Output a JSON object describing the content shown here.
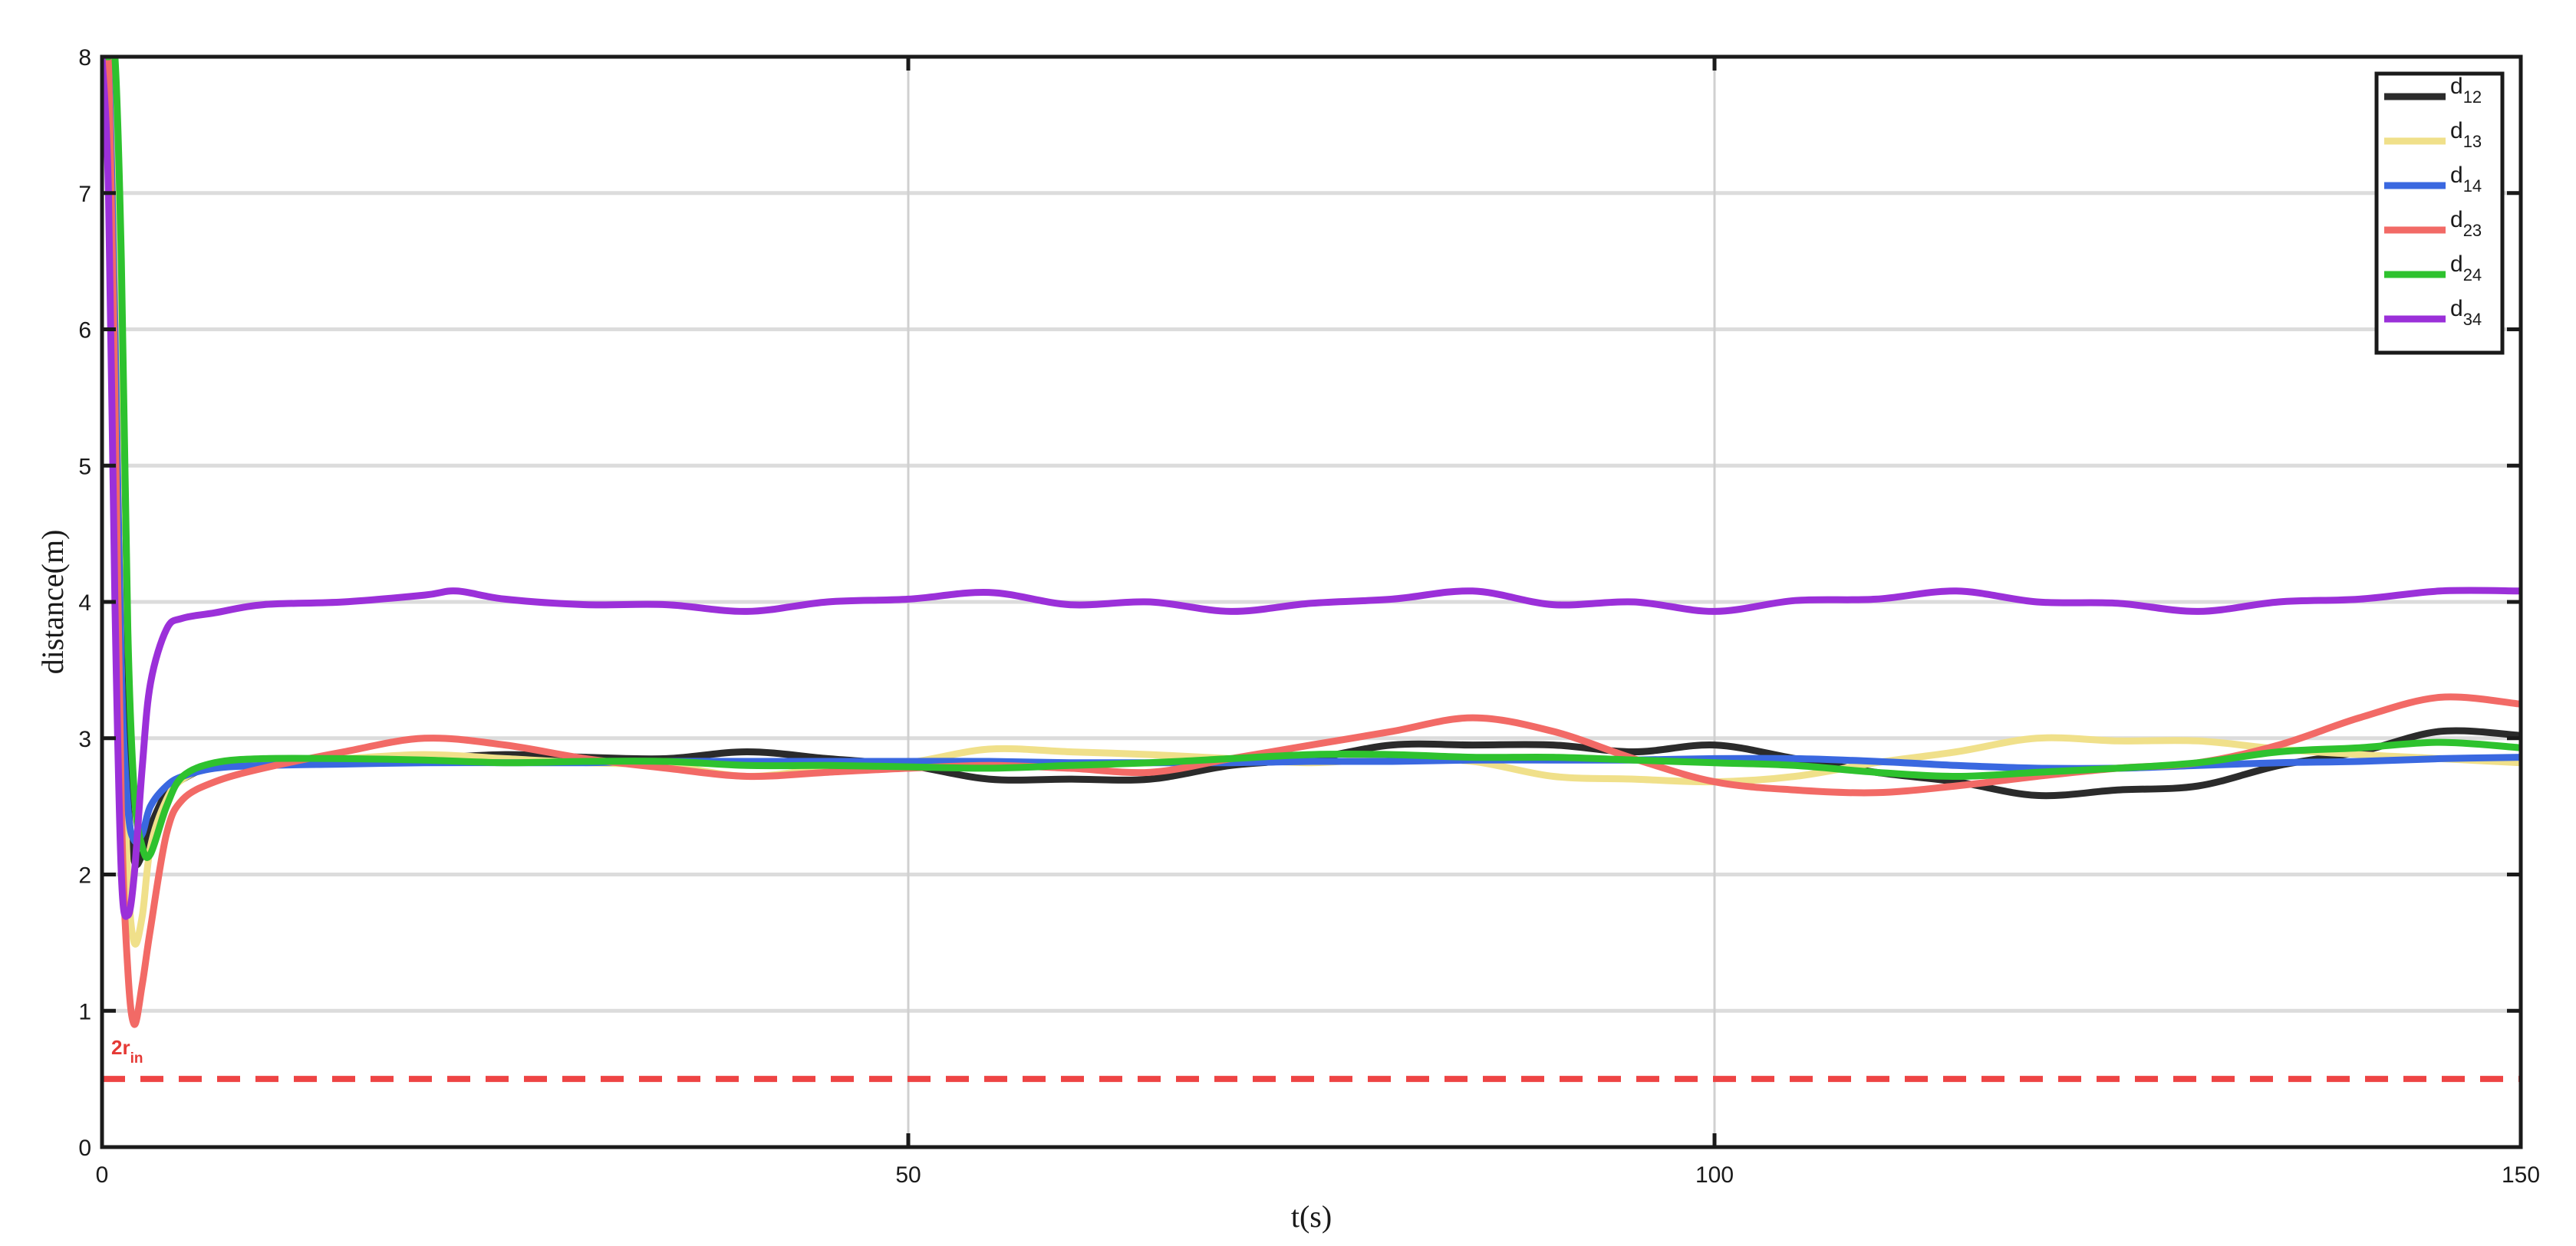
{
  "chart_data": {
    "type": "line",
    "title": "",
    "xlabel": "t(s)",
    "ylabel": "distance(m)",
    "xlim": [
      0,
      150
    ],
    "ylim": [
      0,
      8
    ],
    "xticks": [
      0,
      50,
      100,
      150
    ],
    "yticks": [
      0,
      1,
      2,
      3,
      4,
      5,
      6,
      7,
      8
    ],
    "grid": true,
    "legend_position": "top-right",
    "series": [
      {
        "base": "d",
        "sub": "12",
        "color": "#2b2b2b",
        "x": [
          0,
          0.4,
          0.8,
          1.2,
          1.6,
          2.0,
          2.5,
          3.0,
          4.0,
          5.0,
          7,
          10,
          15,
          20,
          25,
          30,
          35,
          40,
          45,
          50,
          55,
          60,
          65,
          70,
          75,
          80,
          85,
          90,
          95,
          100,
          105,
          110,
          115,
          120,
          125,
          130,
          135,
          140,
          145,
          150
        ],
        "y": [
          8,
          8,
          7.0,
          4.0,
          2.6,
          2.1,
          2.15,
          2.35,
          2.6,
          2.7,
          2.8,
          2.83,
          2.82,
          2.85,
          2.88,
          2.86,
          2.85,
          2.9,
          2.85,
          2.8,
          2.7,
          2.7,
          2.7,
          2.8,
          2.85,
          2.95,
          2.95,
          2.95,
          2.9,
          2.95,
          2.85,
          2.75,
          2.68,
          2.58,
          2.62,
          2.65,
          2.8,
          2.9,
          3.05,
          3.02
        ]
      },
      {
        "base": "d",
        "sub": "13",
        "color": "#f0e08a",
        "x": [
          0,
          0.4,
          0.8,
          1.2,
          1.6,
          2.0,
          2.5,
          3.0,
          4.0,
          5.0,
          7,
          10,
          15,
          20,
          25,
          30,
          35,
          40,
          45,
          50,
          55,
          60,
          65,
          70,
          75,
          80,
          85,
          90,
          95,
          100,
          105,
          110,
          115,
          120,
          125,
          130,
          135,
          140,
          145,
          150
        ],
        "y": [
          8,
          8,
          6.5,
          3.5,
          2.0,
          1.5,
          1.7,
          2.2,
          2.55,
          2.7,
          2.8,
          2.83,
          2.85,
          2.88,
          2.85,
          2.82,
          2.8,
          2.72,
          2.78,
          2.82,
          2.92,
          2.9,
          2.88,
          2.85,
          2.82,
          2.85,
          2.83,
          2.72,
          2.7,
          2.68,
          2.72,
          2.82,
          2.9,
          3.0,
          2.98,
          2.98,
          2.92,
          2.88,
          2.85,
          2.82
        ]
      },
      {
        "base": "d",
        "sub": "14",
        "color": "#3a68e0",
        "x": [
          0,
          0.4,
          0.8,
          1.2,
          1.6,
          2.0,
          2.5,
          3.0,
          4.0,
          5.0,
          7,
          10,
          15,
          20,
          25,
          30,
          35,
          40,
          45,
          50,
          55,
          60,
          65,
          70,
          75,
          80,
          85,
          90,
          95,
          100,
          105,
          110,
          115,
          120,
          125,
          130,
          135,
          140,
          145,
          150
        ],
        "y": [
          8,
          8,
          6.0,
          3.5,
          2.5,
          2.25,
          2.3,
          2.5,
          2.65,
          2.72,
          2.78,
          2.8,
          2.81,
          2.82,
          2.82,
          2.82,
          2.83,
          2.83,
          2.83,
          2.83,
          2.83,
          2.82,
          2.82,
          2.82,
          2.83,
          2.83,
          2.84,
          2.84,
          2.84,
          2.85,
          2.85,
          2.83,
          2.8,
          2.78,
          2.78,
          2.8,
          2.82,
          2.83,
          2.85,
          2.86
        ]
      },
      {
        "base": "d",
        "sub": "23",
        "color": "#f26a66",
        "x": [
          0,
          0.4,
          0.8,
          1.2,
          1.6,
          2.0,
          2.5,
          3.0,
          4.0,
          5.0,
          7,
          10,
          15,
          20,
          25,
          30,
          35,
          40,
          45,
          50,
          55,
          60,
          65,
          70,
          75,
          80,
          85,
          90,
          95,
          100,
          105,
          110,
          115,
          120,
          125,
          130,
          135,
          140,
          145,
          150
        ],
        "y": [
          8,
          8,
          5.5,
          2.5,
          1.3,
          0.9,
          1.2,
          1.6,
          2.3,
          2.55,
          2.68,
          2.78,
          2.9,
          3.0,
          2.95,
          2.85,
          2.78,
          2.72,
          2.75,
          2.78,
          2.8,
          2.78,
          2.75,
          2.85,
          2.95,
          3.05,
          3.15,
          3.05,
          2.85,
          2.68,
          2.62,
          2.6,
          2.65,
          2.72,
          2.78,
          2.82,
          2.95,
          3.15,
          3.3,
          3.25
        ]
      },
      {
        "base": "d",
        "sub": "24",
        "color": "#2ec22e",
        "x": [
          0,
          0.4,
          0.8,
          1.2,
          1.6,
          2.0,
          2.5,
          3.0,
          4.0,
          5.0,
          7,
          10,
          15,
          20,
          25,
          30,
          35,
          40,
          45,
          50,
          55,
          60,
          65,
          70,
          75,
          80,
          85,
          90,
          95,
          100,
          105,
          110,
          115,
          120,
          125,
          130,
          135,
          140,
          145,
          150
        ],
        "y": [
          8,
          8,
          8,
          6.5,
          3.8,
          2.6,
          2.2,
          2.15,
          2.5,
          2.72,
          2.82,
          2.85,
          2.85,
          2.84,
          2.82,
          2.83,
          2.83,
          2.8,
          2.8,
          2.79,
          2.78,
          2.8,
          2.82,
          2.85,
          2.88,
          2.88,
          2.86,
          2.86,
          2.84,
          2.82,
          2.8,
          2.75,
          2.72,
          2.75,
          2.78,
          2.82,
          2.9,
          2.93,
          2.97,
          2.93
        ]
      },
      {
        "base": "d",
        "sub": "34",
        "color": "#9b30d9",
        "x": [
          0,
          0.4,
          0.8,
          1.2,
          1.6,
          2.0,
          2.5,
          3.0,
          4.0,
          5.0,
          7,
          10,
          15,
          20,
          22,
          25,
          30,
          35,
          40,
          45,
          50,
          55,
          60,
          65,
          70,
          75,
          80,
          85,
          90,
          95,
          100,
          105,
          110,
          115,
          120,
          125,
          130,
          135,
          140,
          145,
          150
        ],
        "y": [
          8,
          7.0,
          4.0,
          2.0,
          1.7,
          2.0,
          2.8,
          3.4,
          3.8,
          3.88,
          3.92,
          3.98,
          4.0,
          4.05,
          4.08,
          4.02,
          3.98,
          3.98,
          3.93,
          4.0,
          4.02,
          4.07,
          3.98,
          4.0,
          3.93,
          3.99,
          4.02,
          4.08,
          3.98,
          4.0,
          3.93,
          4.01,
          4.02,
          4.08,
          4.0,
          3.99,
          3.93,
          4.0,
          4.02,
          4.08,
          4.08
        ]
      }
    ],
    "reference_line": {
      "y": 0.5,
      "color": "#ee4444",
      "style": "dashed",
      "label_base": "2r",
      "label_sub": "in"
    }
  }
}
